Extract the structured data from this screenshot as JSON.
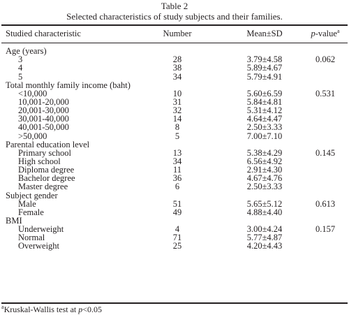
{
  "table": {
    "number_label": "Table 2",
    "title": "Selected characteristics of study subjects and their families.",
    "headers": {
      "characteristic": "Studied characteristic",
      "number": "Number",
      "mean_sd": "Mean±SD",
      "p_value_italic": "p",
      "p_value_rest": "-value",
      "p_value_sup": "a"
    },
    "groups": [
      {
        "label": "Age (years)",
        "p_value": "0.062",
        "rows": [
          {
            "label": "3",
            "number": "28",
            "mean_sd": "3.79±4.58"
          },
          {
            "label": "4",
            "number": "38",
            "mean_sd": "5.89±4.67"
          },
          {
            "label": "5",
            "number": "34",
            "mean_sd": "5.79±4.91"
          }
        ]
      },
      {
        "label": "Total monthly family income (baht)",
        "p_value": "0.531",
        "rows": [
          {
            "label": "<10,000",
            "number": "10",
            "mean_sd": "5.60±6.59"
          },
          {
            "label": "10,001-20,000",
            "number": "31",
            "mean_sd": "5.84±4.81"
          },
          {
            "label": "20,001-30,000",
            "number": "32",
            "mean_sd": "5.31±4.12"
          },
          {
            "label": "30,001-40,000",
            "number": "14",
            "mean_sd": "4.64±4.47"
          },
          {
            "label": "40,001-50,000",
            "number": "8",
            "mean_sd": "2.50±3.33"
          },
          {
            "label": ">50,000",
            "number": "5",
            "mean_sd": "7.00±7.10"
          }
        ]
      },
      {
        "label": "Parental education level",
        "p_value": "0.145",
        "rows": [
          {
            "label": "Primary school",
            "number": "13",
            "mean_sd": "5.38±4.29"
          },
          {
            "label": "High school",
            "number": "34",
            "mean_sd": "6.56±4.92"
          },
          {
            "label": "Diploma degree",
            "number": "11",
            "mean_sd": "2.91±4.30"
          },
          {
            "label": "Bachelor degree",
            "number": "36",
            "mean_sd": "4.67±4.76"
          },
          {
            "label": "Master degree",
            "number": "6",
            "mean_sd": "2.50±3.33"
          }
        ]
      },
      {
        "label": "Subject gender",
        "p_value": "0.613",
        "rows": [
          {
            "label": "Male",
            "number": "51",
            "mean_sd": "5.65±5.12"
          },
          {
            "label": "Female",
            "number": "49",
            "mean_sd": "4.88±4.40"
          }
        ]
      },
      {
        "label": "BMI",
        "p_value": "0.157",
        "rows": [
          {
            "label": "Underweight",
            "number": "4",
            "mean_sd": "3.00±4.24"
          },
          {
            "label": "Normal",
            "number": "71",
            "mean_sd": "5.77±4.87"
          },
          {
            "label": "Overweight",
            "number": "25",
            "mean_sd": "4.20±4.43"
          }
        ]
      }
    ],
    "footnote": {
      "sup": "a",
      "text_before": "Kruskal-Wallis test at ",
      "text_italic": "p",
      "text_after": "<0.05"
    }
  }
}
